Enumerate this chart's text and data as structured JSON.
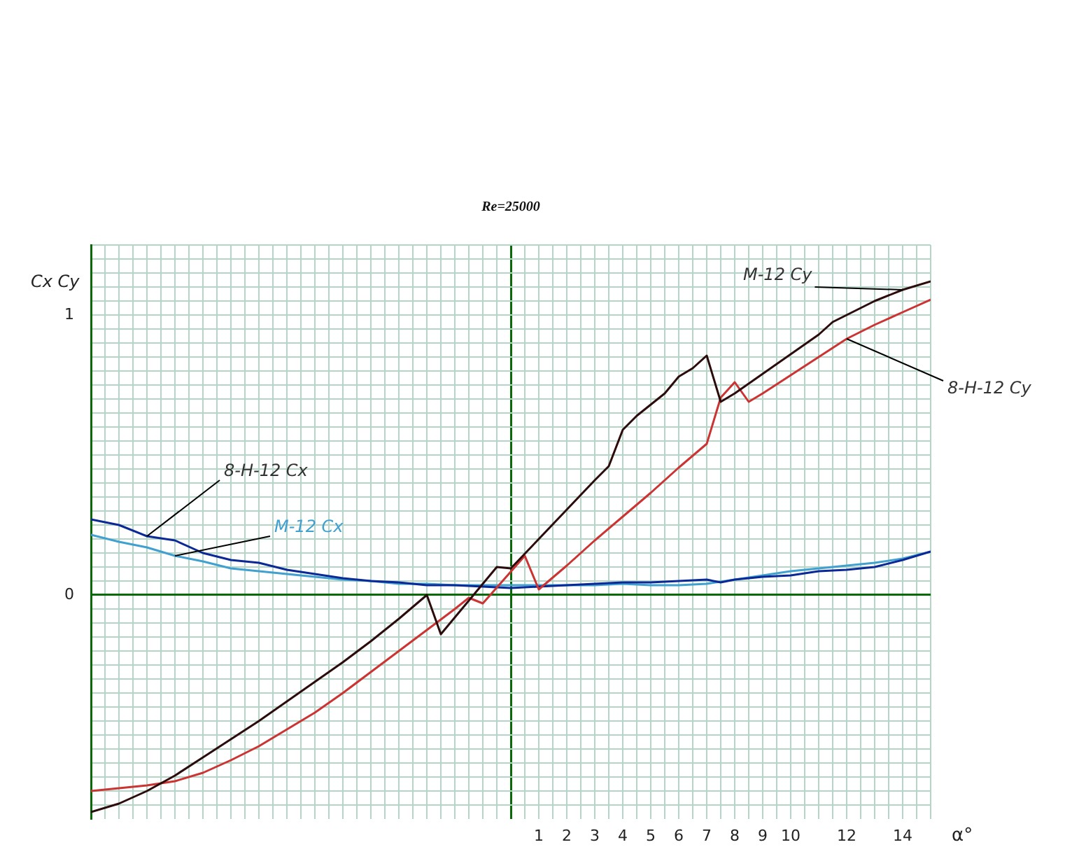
{
  "chart_data": {
    "type": "line",
    "title": "Re=25000",
    "xlabel": "α°",
    "ylabel": "Cx Cy",
    "xlim": [
      -15,
      15
    ],
    "ylim": [
      -0.8,
      1.25
    ],
    "xticks": [
      {
        "value": -15,
        "label": null
      },
      {
        "value": -14.5,
        "label": null
      },
      {
        "value": -14,
        "label": null
      },
      {
        "value": -13.5,
        "label": null
      },
      {
        "value": -13,
        "label": null
      },
      {
        "value": -12.5,
        "label": null
      },
      {
        "value": -12,
        "label": null
      },
      {
        "value": -11.5,
        "label": null
      },
      {
        "value": -11,
        "label": null
      },
      {
        "value": -10.5,
        "label": null
      },
      {
        "value": -10,
        "label": null
      },
      {
        "value": -9.5,
        "label": null
      },
      {
        "value": -9,
        "label": null
      },
      {
        "value": -8.5,
        "label": null
      },
      {
        "value": -8,
        "label": null
      },
      {
        "value": -7.5,
        "label": null
      },
      {
        "value": -7,
        "label": null
      },
      {
        "value": -6.5,
        "label": null
      },
      {
        "value": -6,
        "label": null
      },
      {
        "value": -5.5,
        "label": null
      },
      {
        "value": -5,
        "label": null
      },
      {
        "value": -4.5,
        "label": null
      },
      {
        "value": -4,
        "label": null
      },
      {
        "value": -3.5,
        "label": null
      },
      {
        "value": -3,
        "label": null
      },
      {
        "value": -2.5,
        "label": null
      },
      {
        "value": -2,
        "label": null
      },
      {
        "value": -1.5,
        "label": null
      },
      {
        "value": -1,
        "label": null
      },
      {
        "value": -0.5,
        "label": null
      },
      {
        "value": 0,
        "label": null
      },
      {
        "value": 0.5,
        "label": null
      },
      1,
      {
        "value": 1.5,
        "label": null
      },
      2,
      {
        "value": 2.5,
        "label": null
      },
      3,
      {
        "value": 3.5,
        "label": null
      },
      4,
      {
        "value": 4.5,
        "label": null
      },
      5,
      {
        "value": 5.5,
        "label": null
      },
      6,
      {
        "value": 6.5,
        "label": null
      },
      7,
      {
        "value": 7.5,
        "label": null
      },
      8,
      {
        "value": 8.5,
        "label": null
      },
      9,
      {
        "value": 9.5,
        "label": null
      },
      10,
      {
        "value": 10.5,
        "label": null
      },
      {
        "value": 11,
        "label": null
      },
      {
        "value": 11.5,
        "label": null
      },
      12,
      {
        "value": 12.5,
        "label": null
      },
      {
        "value": 13,
        "label": null
      },
      {
        "value": 13.5,
        "label": null
      },
      14,
      {
        "value": 14.5,
        "label": null
      },
      {
        "value": 15,
        "label": null
      }
    ],
    "yticks": [
      {
        "value": -0.75,
        "label": null
      },
      {
        "value": -0.7,
        "label": null
      },
      {
        "value": -0.65,
        "label": null
      },
      {
        "value": -0.6,
        "label": null
      },
      {
        "value": -0.55,
        "label": null
      },
      {
        "value": -0.5,
        "label": null
      },
      {
        "value": -0.45,
        "label": null
      },
      {
        "value": -0.4,
        "label": null
      },
      {
        "value": -0.35,
        "label": null
      },
      {
        "value": -0.3,
        "label": null
      },
      {
        "value": -0.25,
        "label": null
      },
      {
        "value": -0.2,
        "label": null
      },
      {
        "value": -0.15,
        "label": null
      },
      {
        "value": -0.1,
        "label": null
      },
      {
        "value": -0.05,
        "label": null
      },
      0,
      {
        "value": 0.05,
        "label": null
      },
      {
        "value": 0.1,
        "label": null
      },
      {
        "value": 0.15,
        "label": null
      },
      {
        "value": 0.2,
        "label": null
      },
      {
        "value": 0.25,
        "label": null
      },
      {
        "value": 0.3,
        "label": null
      },
      {
        "value": 0.35,
        "label": null
      },
      {
        "value": 0.4,
        "label": null
      },
      {
        "value": 0.45,
        "label": null
      },
      {
        "value": 0.5,
        "label": null
      },
      {
        "value": 0.55,
        "label": null
      },
      {
        "value": 0.6,
        "label": null
      },
      {
        "value": 0.65,
        "label": null
      },
      {
        "value": 0.7,
        "label": null
      },
      {
        "value": 0.75,
        "label": null
      },
      {
        "value": 0.8,
        "label": null
      },
      {
        "value": 0.85,
        "label": null
      },
      {
        "value": 0.9,
        "label": null
      },
      {
        "value": 0.95,
        "label": null
      },
      1,
      {
        "value": 1.05,
        "label": null
      },
      {
        "value": 1.1,
        "label": null
      },
      {
        "value": 1.15,
        "label": null
      },
      {
        "value": 1.2,
        "label": null
      },
      {
        "value": 1.25,
        "label": null
      }
    ],
    "grid": true,
    "series": [
      {
        "name": "M-12 Cy",
        "color": "#2b0b0b",
        "x": [
          -15,
          -14,
          -13,
          -12,
          -11,
          -10,
          -9,
          -8,
          -7,
          -6,
          -5,
          -4,
          -3,
          -2.5,
          -2,
          -1,
          -0.5,
          0,
          1,
          2,
          3,
          3.5,
          4,
          4.5,
          5,
          5.5,
          6,
          6.5,
          7,
          7.5,
          8,
          9,
          10,
          11,
          11.5,
          12,
          13,
          14,
          15
        ],
        "values": [
          -0.775,
          -0.745,
          -0.7,
          -0.645,
          -0.58,
          -0.515,
          -0.45,
          -0.38,
          -0.31,
          -0.24,
          -0.165,
          -0.085,
          0,
          -0.14,
          -0.08,
          0.04,
          0.1,
          0.095,
          0.2,
          0.305,
          0.41,
          0.46,
          0.59,
          0.64,
          0.68,
          0.72,
          0.78,
          0.81,
          0.855,
          0.69,
          0.72,
          0.79,
          0.86,
          0.93,
          0.975,
          1.0,
          1.05,
          1.09,
          1.12
        ]
      },
      {
        "name": "8-H-12 Cy",
        "color": "#cc3333",
        "x": [
          -15,
          -14,
          -13,
          -12,
          -11,
          -10,
          -9,
          -8,
          -7,
          -6,
          -5,
          -4,
          -3,
          -2,
          -1.5,
          -1,
          0.5,
          1,
          2,
          3,
          4,
          5,
          6,
          7,
          7.5,
          8,
          8.5,
          9,
          10,
          11,
          12,
          13,
          14,
          15
        ],
        "values": [
          -0.7,
          -0.69,
          -0.68,
          -0.665,
          -0.635,
          -0.59,
          -0.54,
          -0.48,
          -0.42,
          -0.35,
          -0.275,
          -0.2,
          -0.125,
          -0.05,
          -0.01,
          -0.03,
          0.14,
          0.02,
          0.105,
          0.195,
          0.28,
          0.365,
          0.455,
          0.54,
          0.705,
          0.76,
          0.69,
          0.72,
          0.785,
          0.85,
          0.915,
          0.965,
          1.01,
          1.055
        ]
      },
      {
        "name": "8-H-12 Cx",
        "color": "#0a2896",
        "x": [
          -15,
          -14,
          -13,
          -12,
          -11,
          -10,
          -9,
          -8,
          -7,
          -6,
          -5,
          -4,
          -3,
          -2,
          -1,
          0,
          1,
          2,
          3,
          4,
          5,
          6,
          7,
          7.5,
          8,
          9,
          10,
          11,
          12,
          13,
          14,
          15
        ],
        "values": [
          0.27,
          0.25,
          0.21,
          0.195,
          0.15,
          0.125,
          0.115,
          0.09,
          0.075,
          0.06,
          0.05,
          0.045,
          0.035,
          0.035,
          0.03,
          0.025,
          0.03,
          0.035,
          0.04,
          0.045,
          0.045,
          0.05,
          0.055,
          0.045,
          0.055,
          0.065,
          0.07,
          0.085,
          0.09,
          0.1,
          0.125,
          0.155
        ]
      },
      {
        "name": "M-12 Cx",
        "color": "#40a0d0",
        "x": [
          -15,
          -14,
          -13,
          -12,
          -11,
          -10,
          -9,
          -8,
          -7,
          -6,
          -5,
          -4,
          -3,
          -2,
          -1,
          0,
          1,
          2,
          3,
          4,
          5,
          6,
          7,
          8,
          9,
          10,
          11,
          12,
          13,
          14,
          15
        ],
        "values": [
          0.215,
          0.19,
          0.17,
          0.14,
          0.12,
          0.095,
          0.085,
          0.075,
          0.065,
          0.055,
          0.05,
          0.04,
          0.04,
          0.035,
          0.035,
          0.035,
          0.035,
          0.035,
          0.035,
          0.04,
          0.035,
          0.035,
          0.04,
          0.055,
          0.07,
          0.085,
          0.095,
          0.105,
          0.115,
          0.13,
          0.155
        ]
      }
    ]
  }
}
